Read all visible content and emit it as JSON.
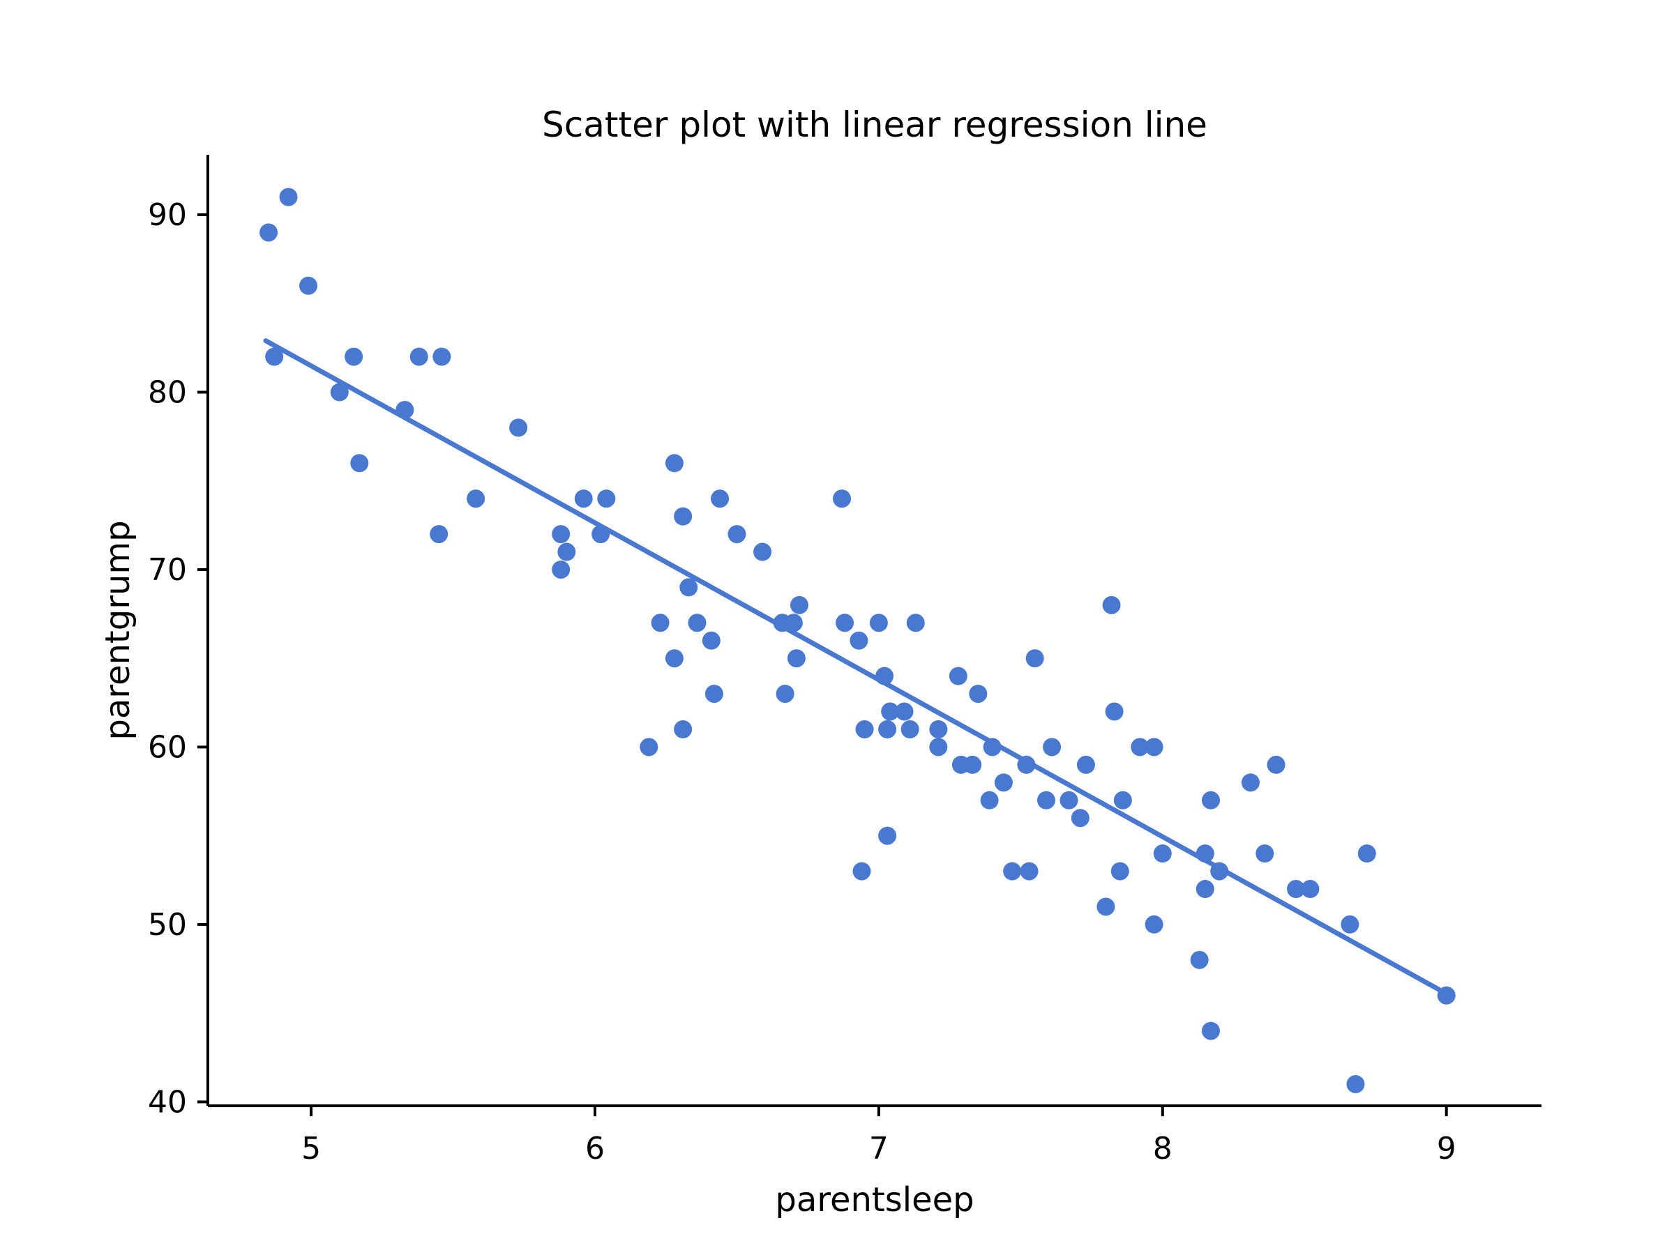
{
  "title": "Scatter plot with linear regression line",
  "axes": {
    "xlabel": "parentsleep",
    "ylabel": "parentgrump",
    "x_ticks": [
      5,
      6,
      7,
      8,
      9
    ],
    "y_ticks": [
      40,
      50,
      60,
      70,
      80,
      90
    ],
    "xlim": [
      4.636,
      9.335
    ],
    "ylim": [
      39.78,
      93.38
    ]
  },
  "colors": {
    "accent": "#4878d0",
    "axis": "#000000",
    "background": "#ffffff"
  },
  "chart_data": {
    "type": "scatter",
    "title": "Scatter plot with linear regression line",
    "xlabel": "parentsleep",
    "ylabel": "parentgrump",
    "xlim": [
      4.636,
      9.335
    ],
    "ylim": [
      39.78,
      93.38
    ],
    "grid": false,
    "legend": false,
    "marker_radius_px": 13,
    "series": [
      {
        "name": "observations",
        "points": [
          [
            4.85,
            89
          ],
          [
            4.92,
            91
          ],
          [
            4.99,
            86
          ],
          [
            4.87,
            82
          ],
          [
            5.15,
            82
          ],
          [
            5.38,
            82
          ],
          [
            5.46,
            82
          ],
          [
            5.1,
            80
          ],
          [
            5.33,
            79
          ],
          [
            5.73,
            78
          ],
          [
            5.17,
            76
          ],
          [
            5.58,
            74
          ],
          [
            5.45,
            72
          ],
          [
            5.96,
            74
          ],
          [
            6.04,
            74
          ],
          [
            5.88,
            72
          ],
          [
            6.02,
            72
          ],
          [
            5.9,
            71
          ],
          [
            5.88,
            70
          ],
          [
            6.28,
            76
          ],
          [
            6.31,
            73
          ],
          [
            6.44,
            74
          ],
          [
            6.5,
            72
          ],
          [
            6.33,
            69
          ],
          [
            6.23,
            67
          ],
          [
            6.36,
            67
          ],
          [
            6.41,
            66
          ],
          [
            6.28,
            65
          ],
          [
            6.19,
            60
          ],
          [
            6.31,
            61
          ],
          [
            6.42,
            63
          ],
          [
            6.59,
            71
          ],
          [
            6.67,
            63
          ],
          [
            6.66,
            67
          ],
          [
            6.7,
            67
          ],
          [
            6.72,
            68
          ],
          [
            6.71,
            65
          ],
          [
            6.87,
            74
          ],
          [
            6.88,
            67
          ],
          [
            7.0,
            67
          ],
          [
            7.13,
            67
          ],
          [
            6.93,
            66
          ],
          [
            7.02,
            64
          ],
          [
            7.28,
            64
          ],
          [
            7.04,
            62
          ],
          [
            7.09,
            62
          ],
          [
            6.95,
            61
          ],
          [
            7.03,
            61
          ],
          [
            7.11,
            61
          ],
          [
            7.21,
            61
          ],
          [
            7.21,
            60
          ],
          [
            7.29,
            59
          ],
          [
            7.33,
            59
          ],
          [
            6.94,
            53
          ],
          [
            7.03,
            55
          ],
          [
            7.35,
            63
          ],
          [
            7.55,
            65
          ],
          [
            7.4,
            60
          ],
          [
            7.52,
            59
          ],
          [
            7.44,
            58
          ],
          [
            7.39,
            57
          ],
          [
            7.47,
            53
          ],
          [
            7.53,
            53
          ],
          [
            7.61,
            60
          ],
          [
            7.73,
            59
          ],
          [
            7.67,
            57
          ],
          [
            7.59,
            57
          ],
          [
            7.71,
            56
          ],
          [
            7.86,
            57
          ],
          [
            7.83,
            62
          ],
          [
            7.82,
            68
          ],
          [
            7.92,
            60
          ],
          [
            7.97,
            60
          ],
          [
            7.85,
            53
          ],
          [
            7.8,
            51
          ],
          [
            7.97,
            50
          ],
          [
            8.0,
            54
          ],
          [
            8.15,
            54
          ],
          [
            8.2,
            53
          ],
          [
            8.15,
            52
          ],
          [
            8.36,
            54
          ],
          [
            8.47,
            52
          ],
          [
            8.52,
            52
          ],
          [
            8.72,
            54
          ],
          [
            8.66,
            50
          ],
          [
            8.13,
            48
          ],
          [
            8.17,
            44
          ],
          [
            8.68,
            41
          ],
          [
            8.17,
            57
          ],
          [
            8.31,
            58
          ],
          [
            8.4,
            59
          ],
          [
            9.0,
            46
          ]
        ]
      }
    ],
    "regression_line": {
      "x1": 4.84,
      "y1": 82.9,
      "x2": 9.0,
      "y2": 46.1
    }
  }
}
